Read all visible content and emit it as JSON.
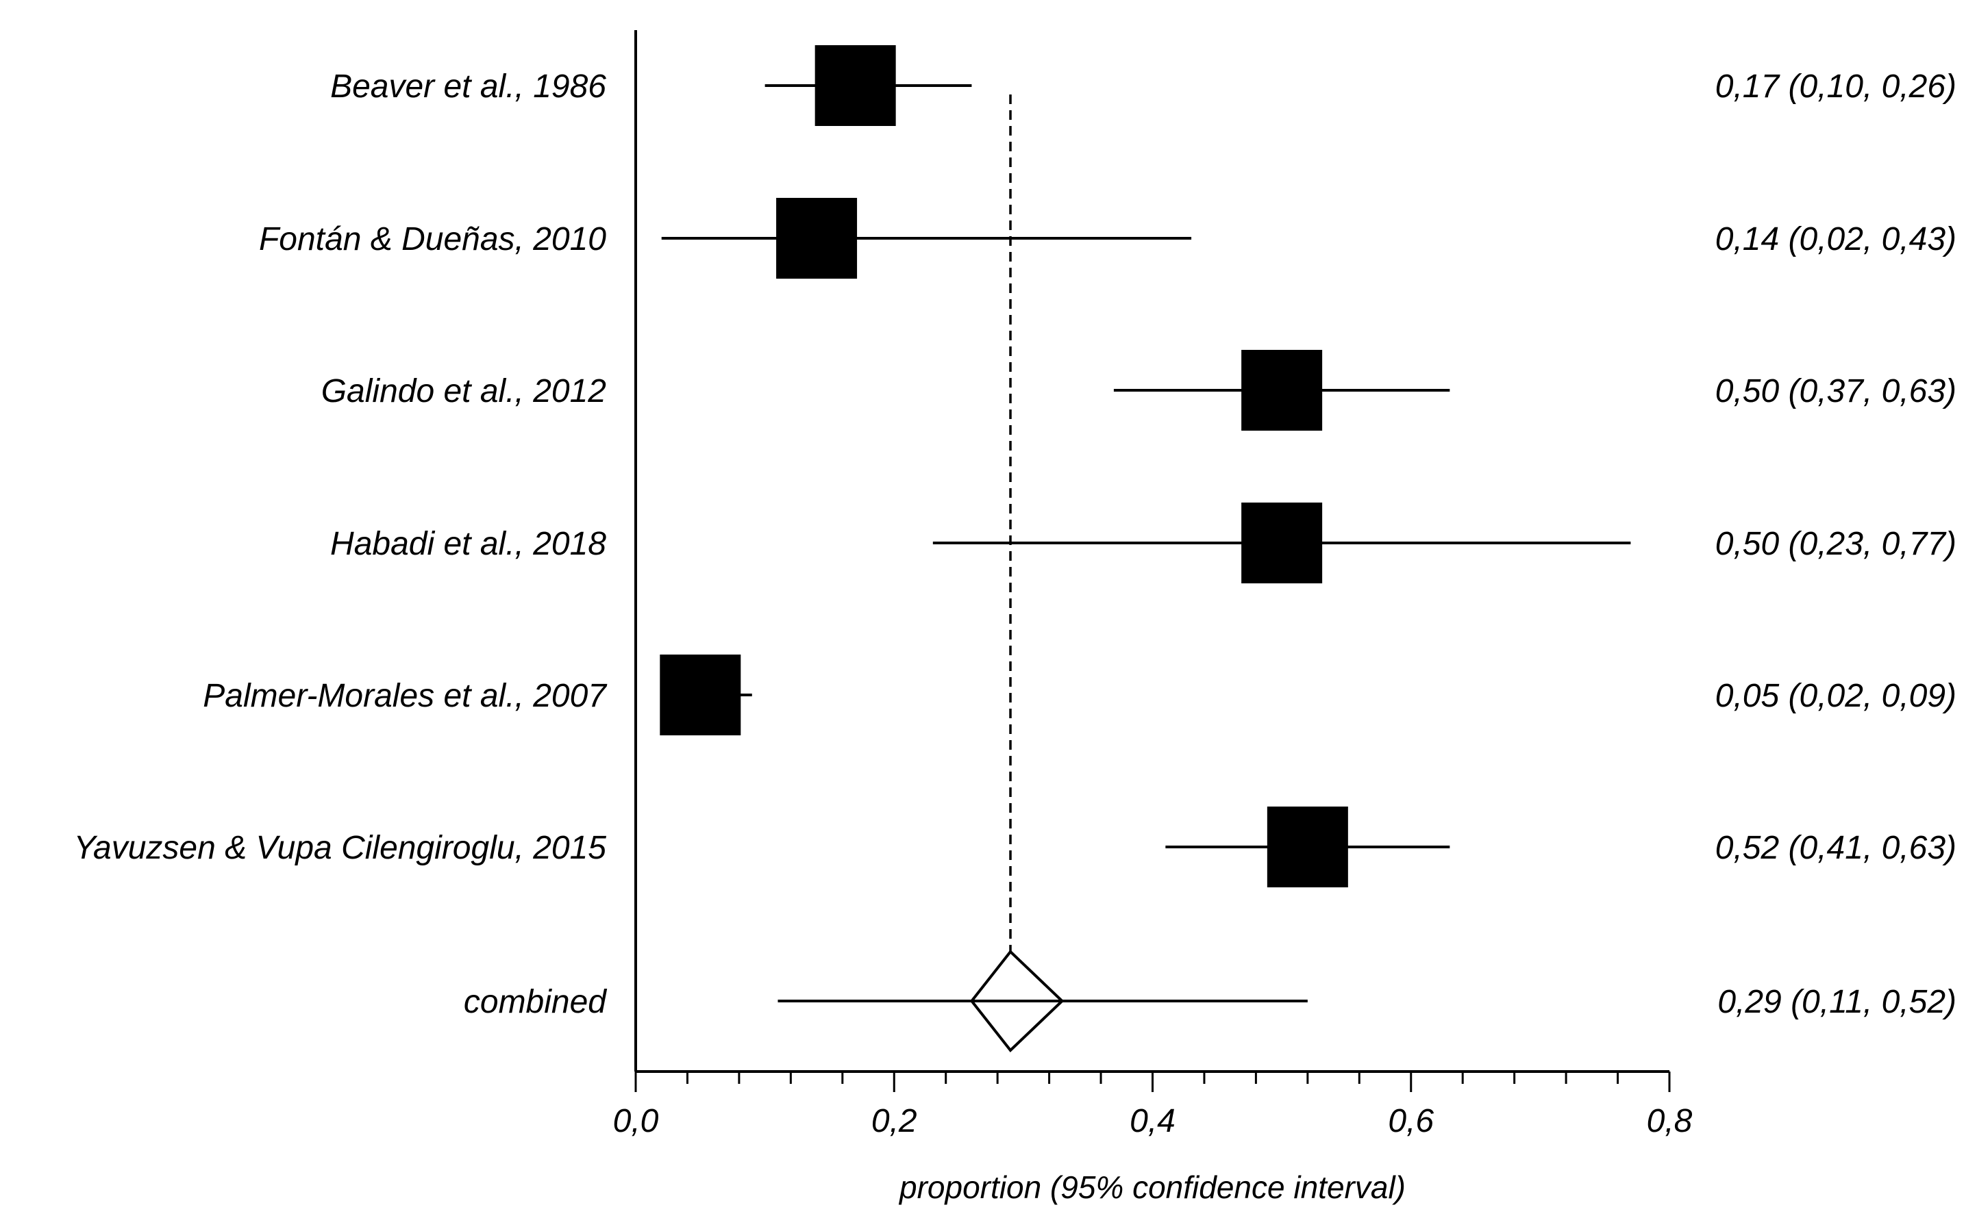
{
  "chart_data": {
    "type": "forest",
    "title": "",
    "xlabel": "proportion (95% confidence interval)",
    "ylabel": "",
    "xlim": [
      0,
      0.8
    ],
    "x_ticks": [
      0,
      0.2,
      0.4,
      0.6,
      0.8
    ],
    "x_tick_labels": [
      "0,0",
      "0,2",
      "0,4",
      "0,6",
      "0,8"
    ],
    "minor_tick_step": 0.04,
    "reference_line": 0.29,
    "studies": [
      {
        "label": "Beaver et al., 1986",
        "estimate": 0.17,
        "lower": 0.1,
        "upper": 0.26,
        "ci_text": "0,17 (0,10, 0,26)"
      },
      {
        "label": "Fontán & Dueñas, 2010",
        "estimate": 0.14,
        "lower": 0.02,
        "upper": 0.43,
        "ci_text": "0,14 (0,02, 0,43)"
      },
      {
        "label": "Galindo et al., 2012",
        "estimate": 0.5,
        "lower": 0.37,
        "upper": 0.63,
        "ci_text": "0,50 (0,37, 0,63)"
      },
      {
        "label": "Habadi et al., 2018",
        "estimate": 0.5,
        "lower": 0.23,
        "upper": 0.77,
        "ci_text": "0,50 (0,23, 0,77)"
      },
      {
        "label": "Palmer-Morales et al., 2007",
        "estimate": 0.05,
        "lower": 0.02,
        "upper": 0.09,
        "ci_text": "0,05 (0,02, 0,09)"
      },
      {
        "label": "Yavuzsen & Vupa Cilengiroglu, 2015",
        "estimate": 0.52,
        "lower": 0.41,
        "upper": 0.63,
        "ci_text": "0,52 (0,41, 0,63)"
      }
    ],
    "combined": {
      "label": "combined",
      "estimate": 0.29,
      "lower": 0.26,
      "upper": 0.33,
      "line_lower": 0.11,
      "line_upper": 0.52,
      "ci_text": "0,29 (0,11, 0,52)"
    }
  }
}
